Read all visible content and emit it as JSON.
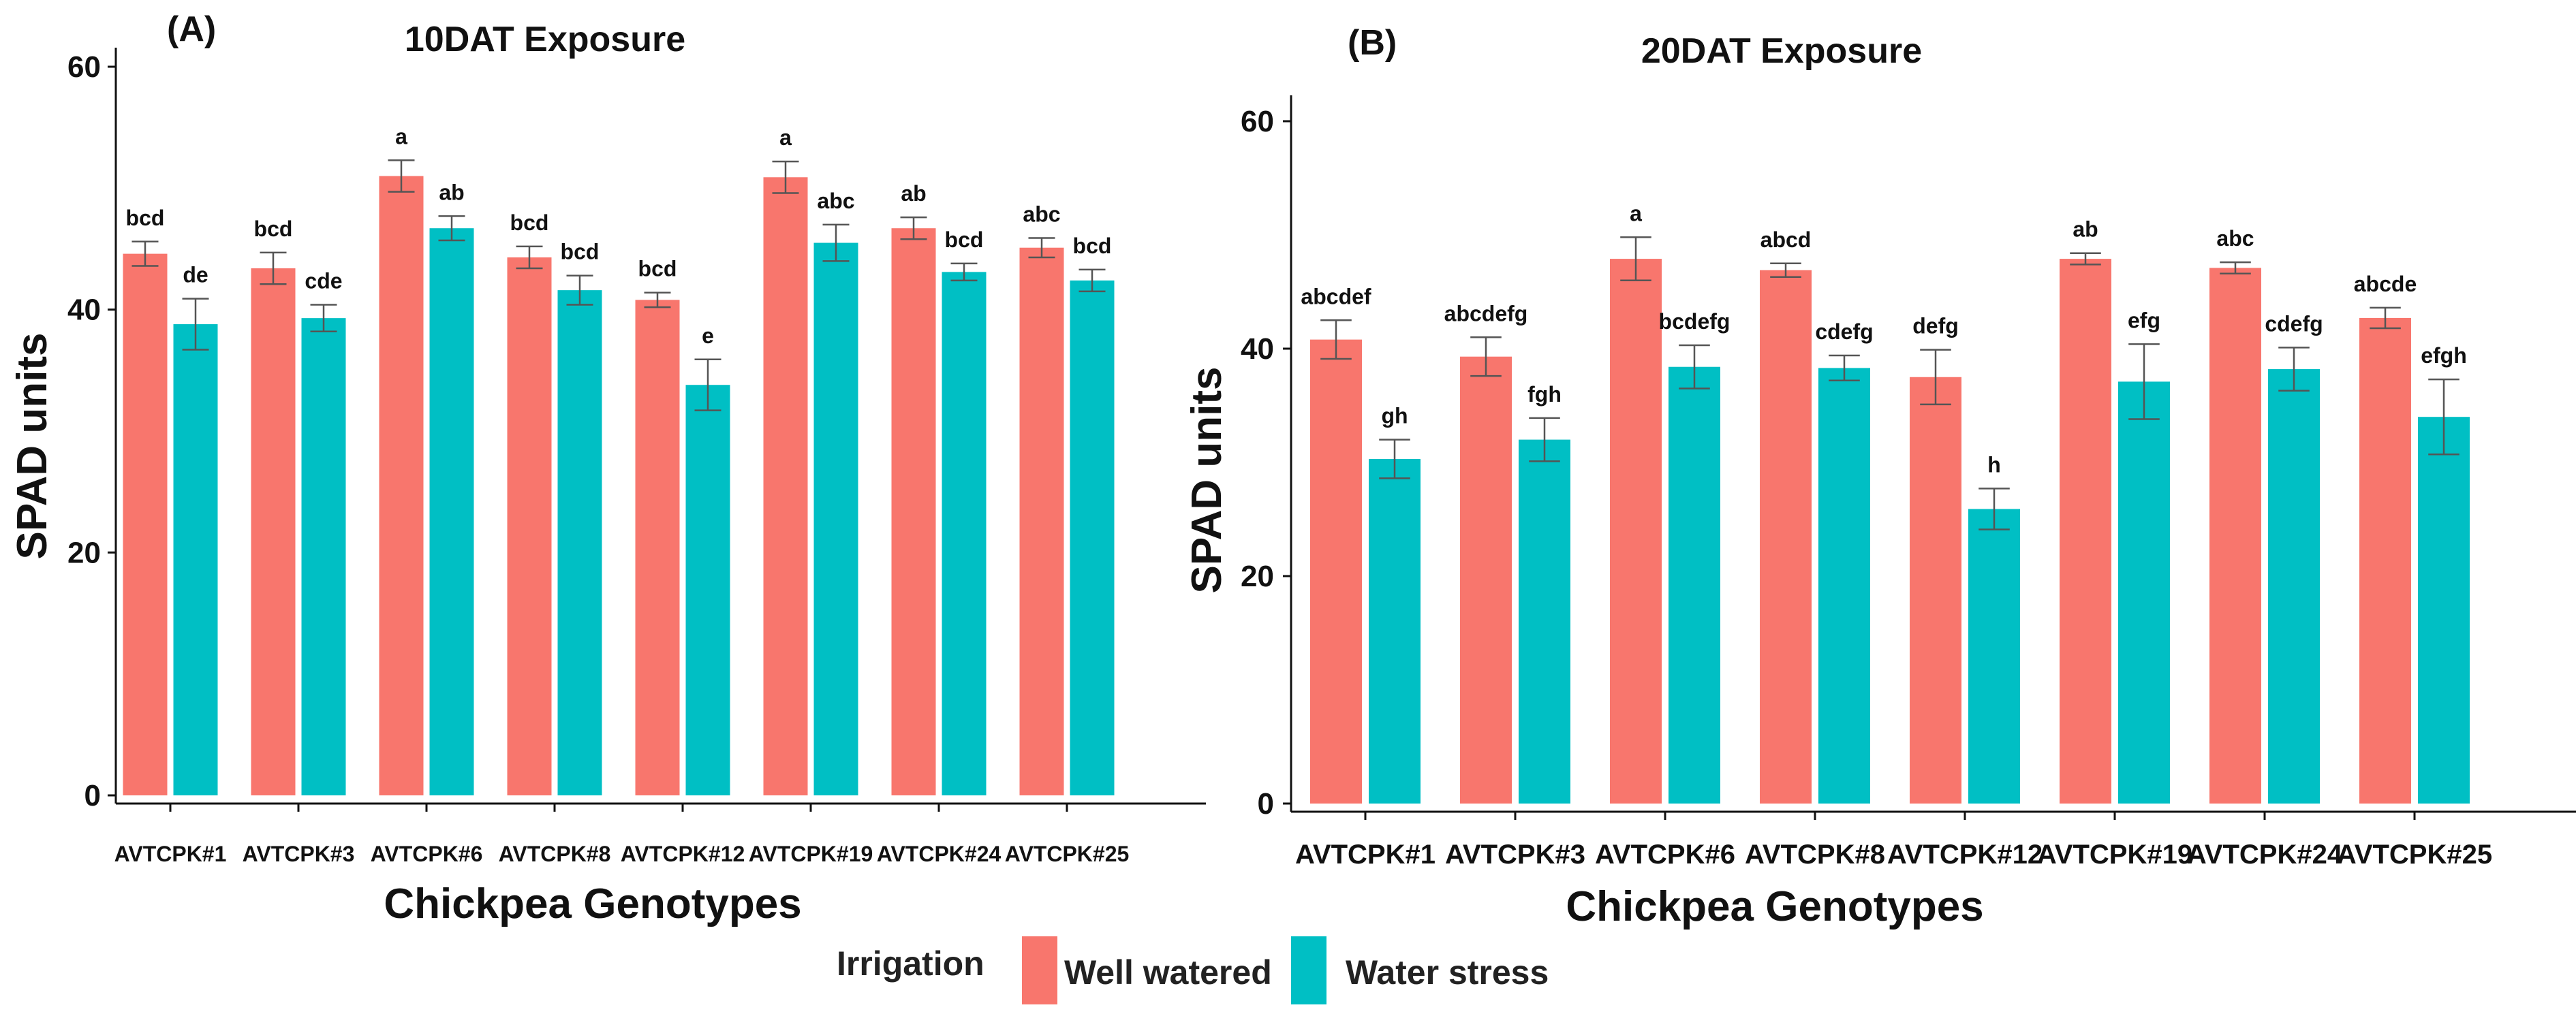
{
  "legend": {
    "title": "Irrigation",
    "items": [
      {
        "name": "Well watered",
        "color": "#F8766D"
      },
      {
        "name": "Water stress",
        "color": "#00BFC4"
      }
    ]
  },
  "chart_data": [
    {
      "type": "bar",
      "panel": "(A)",
      "title": "10DAT Exposure",
      "xlabel": "Chickpea Genotypes",
      "ylabel": "SPAD units",
      "ylim": [
        0,
        60
      ],
      "yticks": [
        0,
        20,
        40,
        60
      ],
      "categories": [
        "AVTCPK#1",
        "AVTCPK#3",
        "AVTCPK#6",
        "AVTCPK#8",
        "AVTCPK#12",
        "AVTCPK#19",
        "AVTCPK#24",
        "AVTCPK#25"
      ],
      "series": [
        {
          "name": "Well watered",
          "color": "#F8766D",
          "values": [
            44.6,
            43.4,
            51.0,
            44.3,
            40.8,
            50.9,
            46.7,
            45.1
          ],
          "errors": [
            1.0,
            1.3,
            1.3,
            0.9,
            0.6,
            1.3,
            0.9,
            0.8
          ],
          "labels": [
            "bcd",
            "bcd",
            "a",
            "bcd",
            "bcd",
            "a",
            "ab",
            "abc"
          ]
        },
        {
          "name": "Water stress",
          "color": "#00BFC4",
          "values": [
            38.8,
            39.3,
            46.7,
            41.6,
            33.8,
            45.5,
            43.1,
            42.4
          ],
          "errors": [
            2.1,
            1.1,
            1.0,
            1.2,
            2.1,
            1.5,
            0.7,
            0.9
          ],
          "labels": [
            "de",
            "cde",
            "ab",
            "bcd",
            "e",
            "abc",
            "bcd",
            "bcd"
          ]
        }
      ]
    },
    {
      "type": "bar",
      "panel": "(B)",
      "title": "20DAT Exposure",
      "xlabel": "Chickpea Genotypes",
      "ylabel": "SPAD units",
      "ylim": [
        0,
        60
      ],
      "yticks": [
        0,
        20,
        40,
        60
      ],
      "categories": [
        "AVTCPK#1",
        "AVTCPK#3",
        "AVTCPK#6",
        "AVTCPK#8",
        "AVTCPK#12",
        "AVTCPK#19",
        "AVTCPK#24",
        "AVTCPK#25"
      ],
      "series": [
        {
          "name": "Well watered",
          "color": "#F8766D",
          "values": [
            40.8,
            39.3,
            47.9,
            46.9,
            37.5,
            47.9,
            47.1,
            42.7
          ],
          "errors": [
            1.7,
            1.7,
            1.9,
            0.6,
            2.4,
            0.5,
            0.5,
            0.9
          ],
          "labels": [
            "abcdef",
            "abcdefg",
            "a",
            "abcd",
            "defg",
            "ab",
            "abc",
            "abcde"
          ]
        },
        {
          "name": "Water stress",
          "color": "#00BFC4",
          "values": [
            30.3,
            32.0,
            38.4,
            38.3,
            25.9,
            37.1,
            38.2,
            34.0
          ],
          "errors": [
            1.7,
            1.9,
            1.9,
            1.1,
            1.8,
            3.3,
            1.9,
            3.3
          ],
          "labels": [
            "gh",
            "fgh",
            "bcdefg",
            "cdefg",
            "h",
            "efg",
            "cdefg",
            "efgh"
          ]
        }
      ]
    }
  ]
}
